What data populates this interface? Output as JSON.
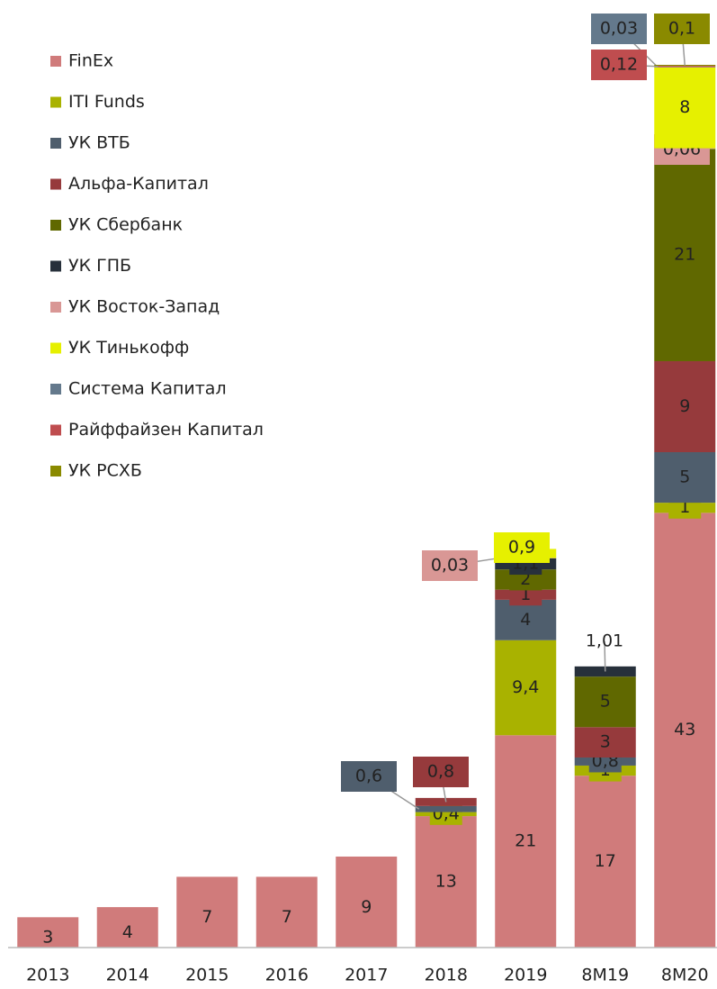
{
  "chart_data": {
    "type": "bar",
    "stacked": true,
    "categories": [
      "2013",
      "2014",
      "2015",
      "2016",
      "2017",
      "2018",
      "2019",
      "8M19",
      "8M20"
    ],
    "series": [
      {
        "name": "FinEx",
        "color": "#d07b7b",
        "values": [
          3,
          4,
          7,
          7,
          9,
          13,
          21,
          17,
          43
        ]
      },
      {
        "name": "ITI Funds",
        "color": "#a9b200",
        "values": [
          null,
          null,
          null,
          null,
          null,
          0.4,
          9.4,
          1,
          1
        ],
        "value_labels": [
          null,
          null,
          null,
          null,
          null,
          "0,4",
          "9,4",
          "1",
          "1"
        ]
      },
      {
        "name": "УК ВТБ",
        "color": "#4f5e6d",
        "values": [
          null,
          null,
          null,
          null,
          null,
          0.6,
          4,
          0.8,
          5
        ],
        "value_labels": [
          null,
          null,
          null,
          null,
          null,
          "0,6",
          "4",
          "0,8",
          "5"
        ]
      },
      {
        "name": "Альфа-Капитал",
        "color": "#963a3c",
        "values": [
          null,
          null,
          null,
          null,
          null,
          0.8,
          1,
          3,
          9
        ],
        "value_labels": [
          null,
          null,
          null,
          null,
          null,
          "0,8",
          "1",
          "3",
          "9"
        ]
      },
      {
        "name": "УК Сбербанк",
        "color": "#606800",
        "values": [
          null,
          null,
          null,
          null,
          null,
          null,
          2,
          5,
          21
        ]
      },
      {
        "name": "УК ГПБ",
        "color": "#27303b",
        "values": [
          null,
          null,
          null,
          null,
          null,
          null,
          1.1,
          1.01,
          null
        ],
        "value_labels": [
          null,
          null,
          null,
          null,
          null,
          null,
          "1,1",
          "1,01",
          null
        ]
      },
      {
        "name": "УК Восток-Запад",
        "color": "#d99795",
        "values": [
          null,
          null,
          null,
          null,
          null,
          null,
          0.03,
          null,
          0.06
        ],
        "value_labels": [
          null,
          null,
          null,
          null,
          null,
          null,
          "0,03",
          null,
          "0,06"
        ]
      },
      {
        "name": "УК Тинькофф",
        "color": "#e6f000",
        "values": [
          null,
          null,
          null,
          null,
          null,
          null,
          0.9,
          null,
          8
        ],
        "value_labels": [
          null,
          null,
          null,
          null,
          null,
          null,
          "0,9",
          null,
          "8"
        ]
      },
      {
        "name": "Система Капитал",
        "color": "#64798c",
        "values": [
          null,
          null,
          null,
          null,
          null,
          null,
          null,
          null,
          0.03
        ],
        "value_labels": [
          null,
          null,
          null,
          null,
          null,
          null,
          null,
          null,
          "0,03"
        ]
      },
      {
        "name": "Райффайзен Капитал",
        "color": "#bf4d4f",
        "values": [
          null,
          null,
          null,
          null,
          null,
          null,
          null,
          null,
          0.12
        ],
        "value_labels": [
          null,
          null,
          null,
          null,
          null,
          null,
          null,
          null,
          "0,12"
        ]
      },
      {
        "name": "УК РСХБ",
        "color": "#8a8a00",
        "values": [
          null,
          null,
          null,
          null,
          null,
          null,
          null,
          null,
          0.1
        ],
        "value_labels": [
          null,
          null,
          null,
          null,
          null,
          null,
          null,
          null,
          "0,1"
        ]
      }
    ],
    "legend": "upper left"
  }
}
